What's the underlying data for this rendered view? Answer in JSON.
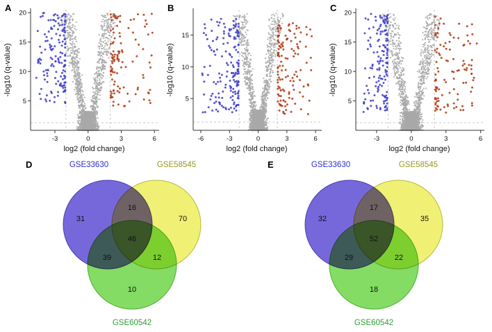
{
  "figure": {
    "panels": [
      "A",
      "B",
      "C",
      "D",
      "E"
    ]
  },
  "style": {
    "ns_color": "#a9a9a9",
    "down_color": "#4040cc",
    "up_color": "#b23c17",
    "axis_color": "#333333",
    "threshold_color": "#c9c9c9",
    "text_color": "#111111",
    "venn_number_color": "#111111"
  },
  "chart_data": [
    {
      "panel": "A",
      "type": "scatter",
      "subtype": "volcano",
      "xlabel": "log2 (fold change)",
      "ylabel": "-log10 (q-value)",
      "xlim": [
        -5.2,
        6.3
      ],
      "ylim": [
        0,
        20.5
      ],
      "xticks": [
        -3,
        0,
        3,
        6
      ],
      "yticks": [
        5,
        10,
        15,
        20
      ],
      "fc_threshold": 2,
      "q_threshold": 1.3,
      "points": {
        "ns": {
          "n": 2300
        },
        "down": {
          "n": 150,
          "x": [
            -4.7,
            -2.05
          ],
          "y": [
            4.5,
            20
          ]
        },
        "up": {
          "n": 115,
          "x": [
            2.05,
            5.9
          ],
          "y": [
            4,
            19.8
          ]
        }
      },
      "seed": 101
    },
    {
      "panel": "B",
      "type": "scatter",
      "subtype": "volcano",
      "xlabel": "log2 (fold change)",
      "ylabel": "-log10 (q-value)",
      "xlim": [
        -6.8,
        6.5
      ],
      "ylim": [
        0,
        19
      ],
      "xticks": [
        -6,
        -3,
        0,
        3,
        6
      ],
      "yticks": [
        5,
        10,
        15
      ],
      "fc_threshold": 2,
      "q_threshold": 1.3,
      "points": {
        "ns": {
          "n": 2300
        },
        "down": {
          "n": 170,
          "x": [
            -5.9,
            -2.05
          ],
          "y": [
            2.8,
            17.6
          ]
        },
        "up": {
          "n": 130,
          "x": [
            2.05,
            5.6
          ],
          "y": [
            2.5,
            17
          ]
        }
      },
      "seed": 202
    },
    {
      "panel": "C",
      "type": "scatter",
      "subtype": "volcano",
      "xlabel": "log2 (fold change)",
      "ylabel": "-log10 (q-value)",
      "xlim": [
        -4.8,
        6.2
      ],
      "ylim": [
        0,
        20.5
      ],
      "xticks": [
        -3,
        0,
        3,
        6
      ],
      "yticks": [
        5,
        10,
        15,
        20
      ],
      "fc_threshold": 2,
      "q_threshold": 1.3,
      "points": {
        "ns": {
          "n": 2300
        },
        "down": {
          "n": 150,
          "x": [
            -4.2,
            -2.05
          ],
          "y": [
            3,
            19.8
          ]
        },
        "up": {
          "n": 110,
          "x": [
            2.05,
            5.7
          ],
          "y": [
            3,
            19.5
          ]
        }
      },
      "seed": 303
    },
    {
      "panel": "D",
      "type": "venn3",
      "sets": [
        {
          "name": "GSE33630",
          "fill": "#6a5bd8",
          "stroke": "#4b3fb0",
          "label_color": "#2d2dd0"
        },
        {
          "name": "GSE58545",
          "fill": "#efef68",
          "stroke": "#b9b93f",
          "label_color": "#97971a"
        },
        {
          "name": "GSE60542",
          "fill": "#79d957",
          "stroke": "#4fae36",
          "label_color": "#2f9e35"
        }
      ],
      "counts": {
        "only_a": 31,
        "ab": 16,
        "only_b": 70,
        "abc": 46,
        "ac": 39,
        "bc": 12,
        "only_c": 10
      }
    },
    {
      "panel": "E",
      "type": "venn3",
      "sets": [
        {
          "name": "GSE33630",
          "fill": "#6a5bd8",
          "stroke": "#4b3fb0",
          "label_color": "#2d2dd0"
        },
        {
          "name": "GSE58545",
          "fill": "#efef68",
          "stroke": "#b9b93f",
          "label_color": "#97971a"
        },
        {
          "name": "GSE60542",
          "fill": "#79d957",
          "stroke": "#4fae36",
          "label_color": "#2f9e35"
        }
      ],
      "counts": {
        "only_a": 32,
        "ab": 17,
        "only_b": 35,
        "abc": 52,
        "ac": 29,
        "bc": 22,
        "only_c": 18
      }
    }
  ]
}
